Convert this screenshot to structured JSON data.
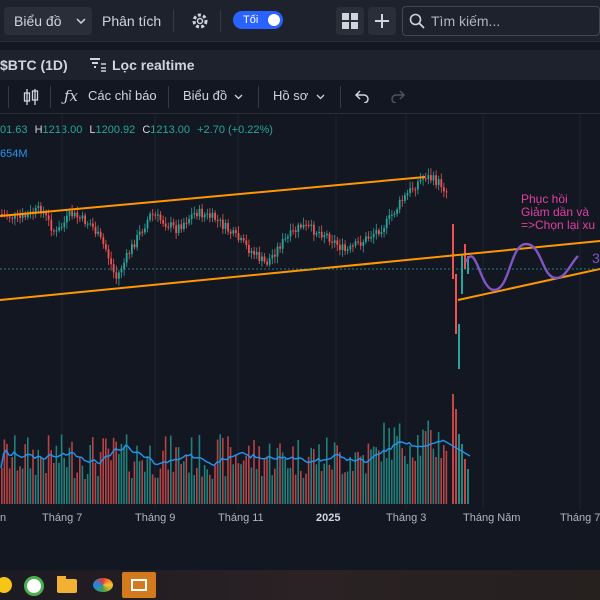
{
  "toolbar": {
    "chart_label": "Biểu đồ",
    "analysis_label": "Phân tích",
    "theme_toggle_label": "Tối",
    "search_placeholder": "Tìm kiếm..."
  },
  "symbol_bar": {
    "symbol": "$BTC (1D)",
    "filter_label": "Lọc realtime"
  },
  "chart_toolbar": {
    "indicators_label": "Các chỉ báo",
    "chart_menu_label": "Biểu đồ",
    "profile_menu_label": "Hồ sơ"
  },
  "legend": {
    "open_value": "01.63",
    "high_label": "H",
    "high_value": "1213.00",
    "low_label": "L",
    "low_value": "1200.92",
    "close_label": "C",
    "close_value": "1213.00",
    "change": "+2.70 (+0.22%)",
    "volume": "654M"
  },
  "annotations": {
    "line1": "Phục hồi",
    "line2": "Giảm dần và",
    "line3": "=>Chọn lại xu",
    "wave_label": "3"
  },
  "x_axis": {
    "labels": [
      "n",
      "Tháng 7",
      "Tháng 9",
      "Tháng 11",
      "2025",
      "Tháng 3",
      "Tháng Năm",
      "Tháng 7"
    ]
  },
  "colors": {
    "background": "#131722",
    "up": "#26a69a",
    "down": "#ef5350",
    "trendline": "#ff9800",
    "wave": "#7e57c2",
    "volume_ma": "#2196f3",
    "annotation": "#e040a0"
  }
}
